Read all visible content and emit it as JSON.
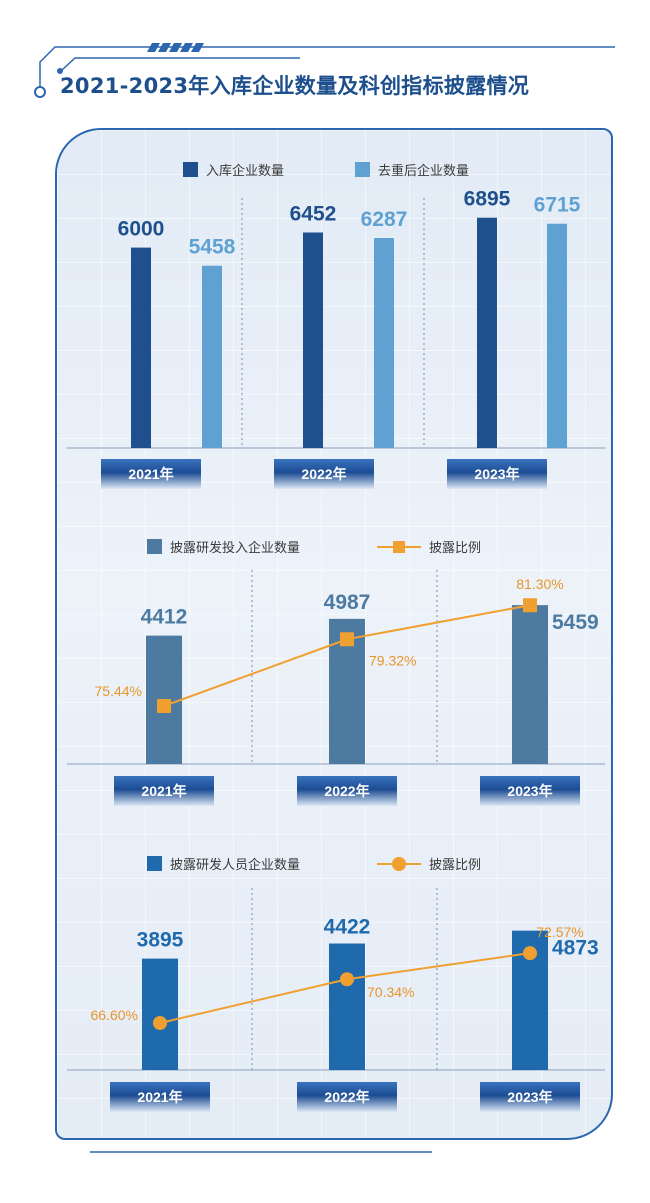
{
  "page": {
    "title": "2021-2023年入库企业数量及科创指标披露情况"
  },
  "chart_data": [
    {
      "type": "bar",
      "categories": [
        "2021年",
        "2022年",
        "2023年"
      ],
      "series": [
        {
          "name": "入库企业数量",
          "values": [
            6000,
            6452,
            6895
          ],
          "color": "#1f4f8d"
        },
        {
          "name": "去重后企业数量",
          "values": [
            5458,
            6287,
            6715
          ],
          "color": "#5fa2d2"
        }
      ],
      "value_labels": [
        [
          "6000",
          "6452",
          "6895"
        ],
        [
          "5458",
          "6287",
          "6715"
        ]
      ]
    },
    {
      "type": "bar",
      "categories": [
        "2021年",
        "2022年",
        "2023年"
      ],
      "series": [
        {
          "name": "披露研发投入企业数量",
          "values": [
            4412,
            4987,
            5459
          ],
          "color": "#4d7aa1"
        },
        {
          "name": "披露比例",
          "type": "line",
          "marker": "square",
          "values": [
            75.44,
            79.32,
            81.3
          ],
          "color": "#f0a030"
        }
      ],
      "value_labels": [
        [
          "4412",
          "4987",
          "5459"
        ],
        [
          "75.44%",
          "79.32%",
          "81.30%"
        ]
      ]
    },
    {
      "type": "bar",
      "categories": [
        "2021年",
        "2022年",
        "2023年"
      ],
      "series": [
        {
          "name": "披露研发人员企业数量",
          "values": [
            3895,
            4422,
            4873
          ],
          "color": "#1f6aad"
        },
        {
          "name": "披露比例",
          "type": "line",
          "marker": "circle",
          "values": [
            66.6,
            70.34,
            72.57
          ],
          "color": "#f0a030"
        }
      ],
      "value_labels": [
        [
          "3895",
          "4422",
          "4873"
        ],
        [
          "66.60%",
          "70.34%",
          "72.57%"
        ]
      ]
    }
  ]
}
